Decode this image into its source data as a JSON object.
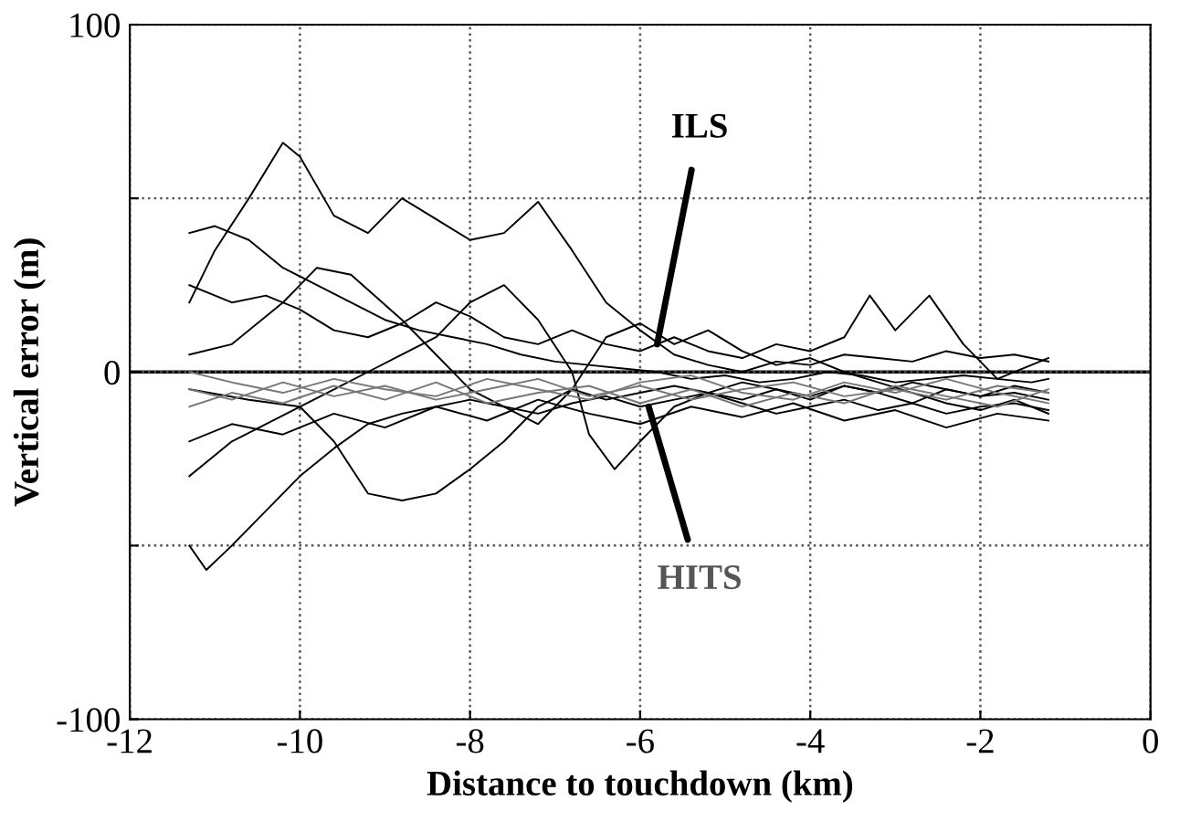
{
  "chart_data": {
    "type": "line",
    "xlabel": "Distance to touchdown (km)",
    "ylabel": "Vertical error (m)",
    "xlim": [
      -12,
      0
    ],
    "xticks": [
      -12,
      -10,
      -8,
      -6,
      -4,
      -2,
      0
    ],
    "ylim": [
      -100,
      100
    ],
    "yticks": [
      -100,
      {
        "value": -50,
        "label": null
      },
      0,
      {
        "value": 50,
        "label": null
      },
      100
    ],
    "grid": true,
    "line_style": "solid",
    "marker": "none",
    "ref_lines": [
      {
        "axis": "y",
        "value": 0,
        "label": null,
        "color": "#000000",
        "line_style": "solid"
      }
    ],
    "annotations": [
      {
        "text": "ILS",
        "x": -5.8,
        "y": 8
      },
      {
        "text": "HITS",
        "x": -5.9,
        "y": -10
      }
    ],
    "series": [
      {
        "color": "#000000",
        "x": [
          -11.3,
          -11,
          -10.6,
          -10.2,
          -10,
          -9.6,
          -9.2,
          -8.8,
          -8.4,
          -8,
          -7.6,
          -7.2,
          -6.8,
          -6.4,
          -6,
          -5.6,
          -5.2,
          -4.8,
          -4.4,
          -4,
          -3.6,
          -3.2,
          -2.8,
          -2.4,
          -2,
          -1.6,
          -1.2
        ],
        "values": [
          20,
          35,
          50,
          66,
          62,
          45,
          40,
          50,
          44,
          38,
          40,
          49,
          35,
          20,
          12,
          5,
          2,
          0,
          3,
          2,
          5,
          4,
          3,
          6,
          4,
          5,
          3
        ]
      },
      {
        "color": "#000000",
        "x": [
          -11.3,
          -11,
          -10.6,
          -10.2,
          -9.8,
          -9.4,
          -9,
          -8.6,
          -8.2,
          -7.8,
          -7.4,
          -7,
          -6.6,
          -6.2,
          -5.8,
          -5.4,
          -5,
          -4.6,
          -4.2,
          -3.8,
          -3.4,
          -3,
          -2.6,
          -2.2,
          -1.8,
          -1.4,
          -1.2
        ],
        "values": [
          40,
          42,
          38,
          30,
          25,
          20,
          15,
          12,
          10,
          8,
          5,
          3,
          2,
          1,
          0,
          -2,
          -1,
          -3,
          -2,
          0,
          -1,
          -3,
          -2,
          -1,
          -2,
          -3,
          -2
        ]
      },
      {
        "color": "#000000",
        "x": [
          -11.3,
          -10.6,
          -10,
          -9.6,
          -9.2,
          -8.8,
          -8.4,
          -8,
          -7.6,
          -7.2,
          -6.8,
          -6.4,
          -6,
          -5.6,
          -5.2,
          -4.8,
          -4.4,
          -4,
          -3.6,
          -3.2,
          -2.8,
          -2.4,
          -2,
          -1.6,
          -1.2
        ],
        "values": [
          -5,
          -8,
          -10,
          -20,
          -35,
          -37,
          -35,
          -28,
          -20,
          -10,
          -5,
          -8,
          -6,
          -4,
          -6,
          -8,
          -5,
          -7,
          -4,
          -6,
          -9,
          -5,
          -7,
          -6,
          -8
        ]
      },
      {
        "color": "#000000",
        "x": [
          -11.3,
          -11.1,
          -10.8,
          -10.4,
          -10,
          -9.6,
          -9.2,
          -8.8,
          -8.4,
          -8,
          -7.6,
          -7.2,
          -6.8,
          -6.4,
          -6,
          -5.6,
          -5.2,
          -4.8,
          -4.4,
          -4,
          -3.6,
          -3.2,
          -2.8,
          -2.4,
          -2,
          -1.6,
          -1.2
        ],
        "values": [
          -50,
          -57,
          -50,
          -40,
          -30,
          -22,
          -15,
          -12,
          -10,
          -8,
          -10,
          -12,
          -9,
          -7,
          -10,
          -8,
          -6,
          -9,
          -12,
          -10,
          -8,
          -11,
          -9,
          -12,
          -10,
          -9,
          -11
        ]
      },
      {
        "color": "#000000",
        "x": [
          -11.3,
          -10.8,
          -10.4,
          -10,
          -9.6,
          -9.2,
          -8.8,
          -8.4,
          -8,
          -7.6,
          -7.2,
          -6.8,
          -6.4,
          -6,
          -5.6,
          -5.2,
          -4.8,
          -4.4,
          -4,
          -3.6,
          -3.3,
          -3,
          -2.6,
          -2.2,
          -1.8,
          -1.4,
          -1.2
        ],
        "values": [
          25,
          20,
          22,
          18,
          12,
          10,
          14,
          20,
          16,
          10,
          8,
          12,
          8,
          6,
          10,
          6,
          4,
          8,
          6,
          10,
          22,
          12,
          22,
          8,
          -2,
          2,
          4
        ]
      },
      {
        "color": "#000000",
        "x": [
          -11.3,
          -10.8,
          -10.4,
          -10,
          -9.6,
          -9.2,
          -8.8,
          -8.4,
          -8,
          -7.6,
          -7.2,
          -6.8,
          -6.6,
          -6.3,
          -6,
          -5.6,
          -5.2,
          -4.8,
          -4.4,
          -4,
          -3.6,
          -3.2,
          -2.8,
          -2.4,
          -2,
          -1.6,
          -1.2
        ],
        "values": [
          -30,
          -20,
          -15,
          -10,
          -5,
          0,
          5,
          10,
          20,
          25,
          15,
          0,
          -18,
          -28,
          -20,
          -10,
          -6,
          -3,
          -5,
          -8,
          -4,
          -6,
          -3,
          -5,
          -7,
          -4,
          -6
        ]
      },
      {
        "color": "#000000",
        "x": [
          -11.3,
          -10.8,
          -10.2,
          -9.8,
          -9.4,
          -8.8,
          -8.4,
          -8,
          -7.6,
          -7.2,
          -6.8,
          -6.4,
          -6,
          -5.6,
          -5.2,
          -4.8,
          -4.4,
          -4,
          -3.6,
          -3.2,
          -2.8,
          -2.4,
          -2,
          -1.6,
          -1.2
        ],
        "values": [
          5,
          8,
          20,
          30,
          28,
          15,
          5,
          -5,
          -10,
          -15,
          -5,
          10,
          14,
          8,
          12,
          6,
          2,
          4,
          0,
          -3,
          -6,
          -9,
          -11,
          -8,
          -12
        ]
      },
      {
        "color": "#000000",
        "x": [
          -11.3,
          -10.8,
          -10.2,
          -9.6,
          -9,
          -8.4,
          -7.8,
          -7.2,
          -6.6,
          -6,
          -5.4,
          -4.8,
          -4.2,
          -3.6,
          -3,
          -2.4,
          -1.8,
          -1.2
        ],
        "values": [
          -20,
          -15,
          -18,
          -12,
          -16,
          -10,
          -14,
          -8,
          -12,
          -15,
          -10,
          -13,
          -9,
          -14,
          -11,
          -16,
          -12,
          -14
        ]
      },
      {
        "color": "#777777",
        "x": [
          -11.3,
          -10.8,
          -10.2,
          -9.6,
          -9,
          -8.4,
          -7.8,
          -7.2,
          -6.6,
          -6,
          -5.4,
          -4.8,
          -4.2,
          -3.6,
          -3,
          -2.4,
          -1.8,
          -1.2
        ],
        "values": [
          -5,
          -8,
          -3,
          -7,
          -4,
          -8,
          -5,
          -2,
          -7,
          -4,
          -8,
          -5,
          -3,
          -7,
          -5,
          -8,
          -4,
          -6
        ]
      },
      {
        "color": "#777777",
        "x": [
          -11.3,
          -10.8,
          -10.2,
          -9.6,
          -9,
          -8.4,
          -7.8,
          -7.2,
          -6.6,
          -6,
          -5.4,
          -4.8,
          -4.2,
          -3.6,
          -3,
          -2.4,
          -1.8,
          -1.2
        ],
        "values": [
          -10,
          -6,
          -9,
          -4,
          -8,
          -3,
          -9,
          -6,
          -4,
          -9,
          -5,
          -10,
          -6,
          -9,
          -4,
          -7,
          -10,
          -5
        ]
      },
      {
        "color": "#777777",
        "x": [
          -11.3,
          -10.8,
          -10.2,
          -9.6,
          -9,
          -8.4,
          -7.8,
          -7.2,
          -6.6,
          -6,
          -5.4,
          -4.8,
          -4.2,
          -3.6,
          -3,
          -2.4,
          -1.8,
          -1.2
        ],
        "values": [
          0,
          -3,
          -6,
          -2,
          -5,
          -7,
          -2,
          -5,
          -8,
          -3,
          -1,
          -6,
          -8,
          -3,
          -6,
          -2,
          -6,
          -9
        ]
      }
    ]
  }
}
